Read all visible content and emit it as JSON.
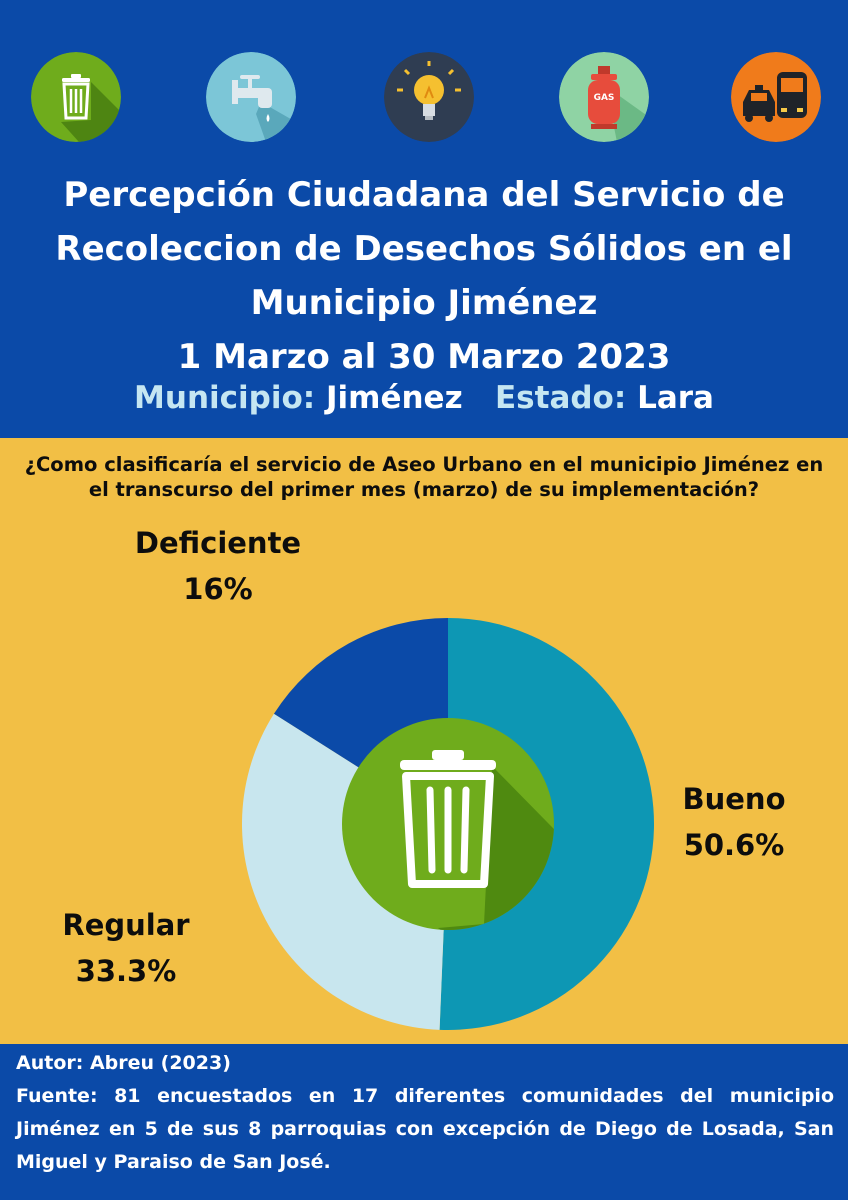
{
  "header": {
    "icons": [
      "trash-icon",
      "water-faucet-icon",
      "lightbulb-icon",
      "gas-cylinder-icon",
      "transport-icon"
    ],
    "gas_text": "GAS",
    "title_lines": [
      "Percepción Ciudadana del Servicio de",
      "Recoleccion de Desechos Sólidos en el",
      "Municipio Jiménez",
      "1 Marzo al 30 Marzo 2023"
    ],
    "municipio_label": "Municipio:",
    "municipio_value": "Jiménez",
    "estado_label": "Estado:",
    "estado_value": "Lara"
  },
  "chart_data": {
    "type": "pie",
    "title": "¿Como clasificaría el servicio de Aseo Urbano en el municipio Jiménez  en el transcurso del primer mes (marzo) de su implementación?",
    "slices": [
      {
        "label": "Bueno",
        "value": 50.6,
        "display": "50.6%",
        "color": "#0d97b4"
      },
      {
        "label": "Regular",
        "value": 33.3,
        "display": "33.3%",
        "color": "#c8e6ee"
      },
      {
        "label": "Deficiente",
        "value": 16,
        "display": "16%",
        "color": "#0b4aa8"
      }
    ],
    "center_icon": "trash-icon",
    "center_color": "#6fac1c"
  },
  "footer": {
    "author": "Autor: Abreu (2023)",
    "source": "Fuente: 81 encuestados en 17 diferentes comunidades del municipio Jiménez en 5 de sus 8 parroquias con excepción de Diego de Losada, San Miguel y Paraiso de San José."
  }
}
